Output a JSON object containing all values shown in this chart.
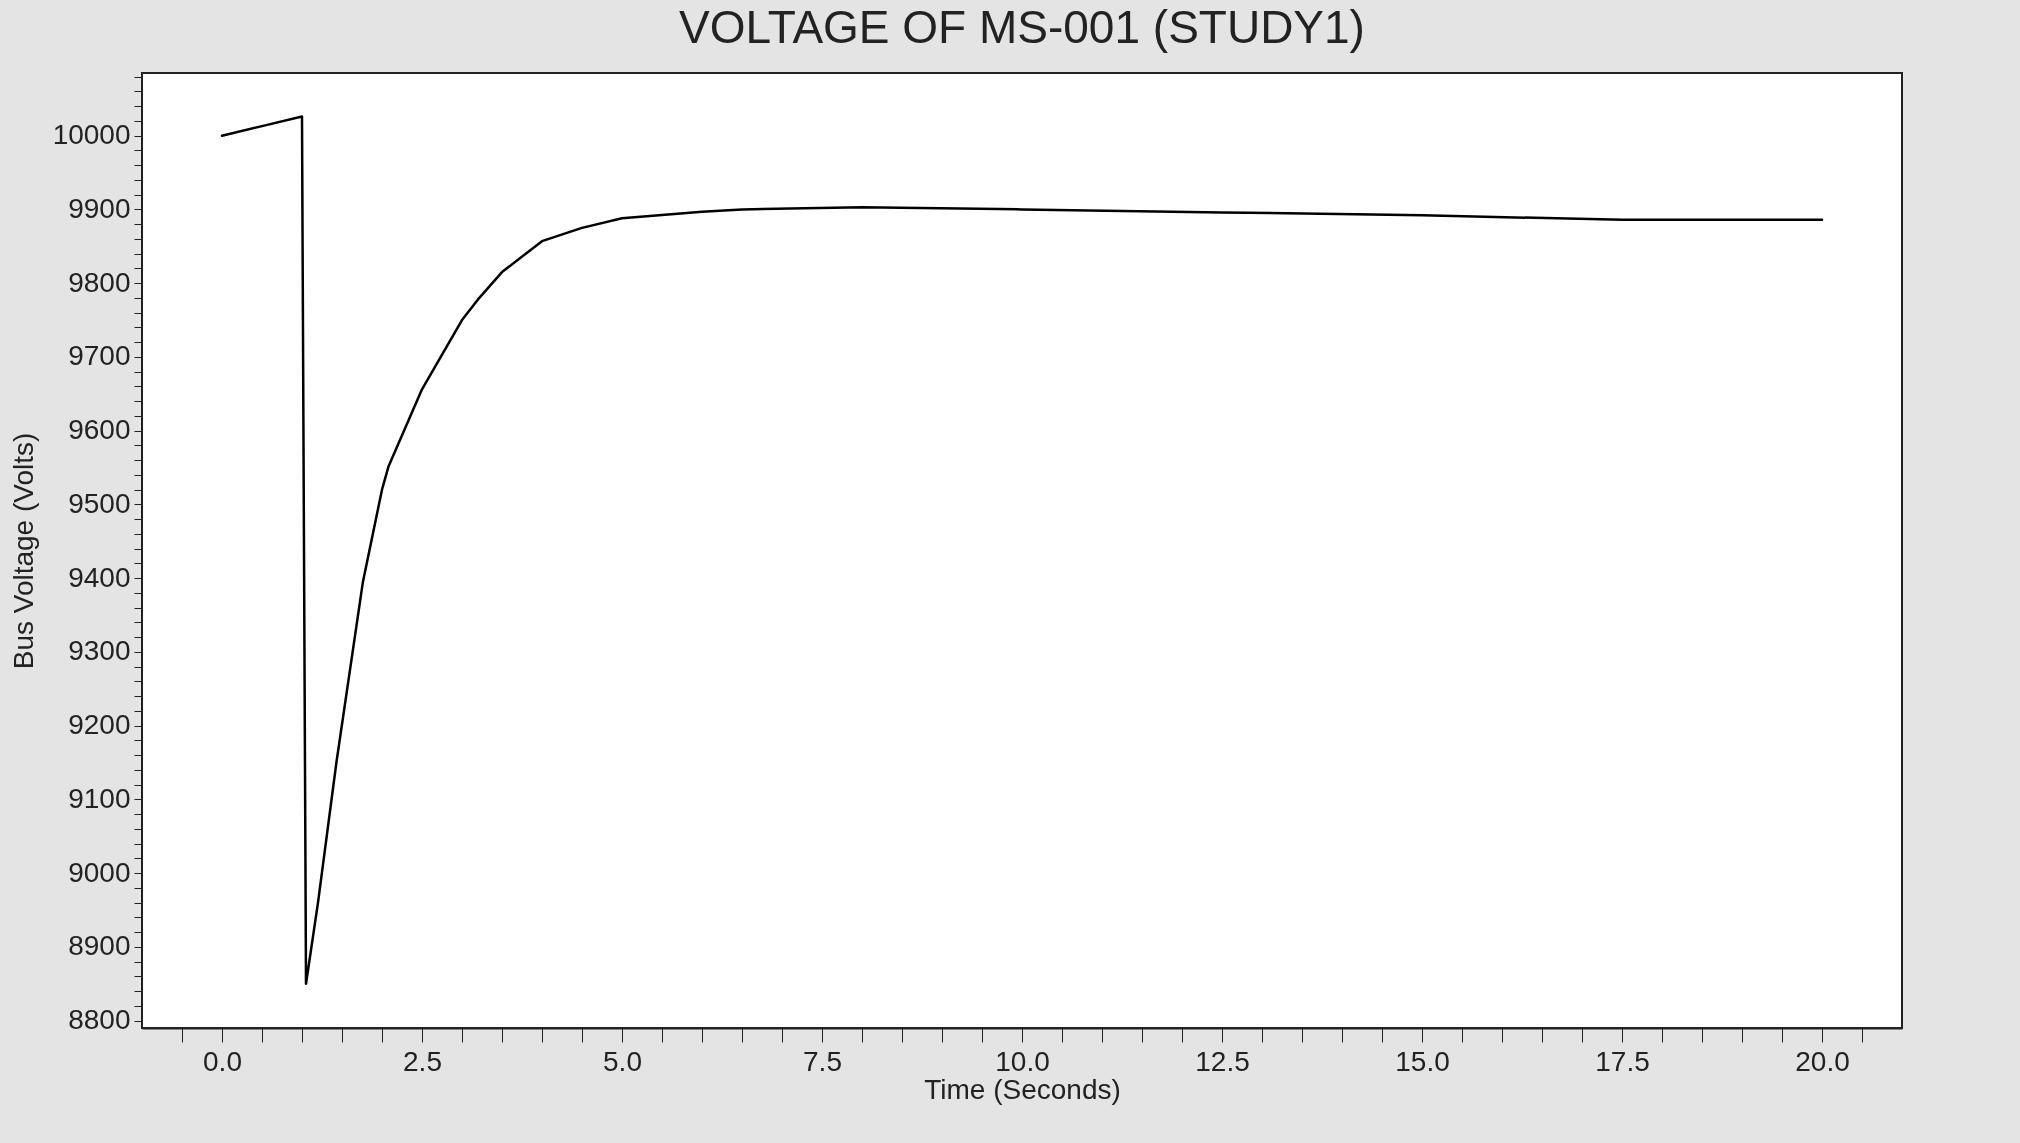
{
  "chart_data": {
    "type": "line",
    "title": "VOLTAGE OF MS-001 (STUDY1)",
    "xlabel": "Time (Seconds)",
    "ylabel": "Bus Voltage (Volts)",
    "series": [
      {
        "color": "#000000",
        "x": [
          0,
          0.5,
          1.0,
          1.05,
          1.2,
          1.43,
          1.76,
          2.0,
          2.08,
          2.5,
          3.0,
          3.2,
          3.5,
          4.0,
          4.5,
          5.0,
          6.0,
          6.5,
          8.0,
          10.0,
          12.5,
          15.0,
          17.5,
          20.0
        ],
        "values": [
          10000,
          10013,
          10026,
          8850,
          8960,
          9150,
          9394,
          9520,
          9551,
          9656,
          9750,
          9778,
          9815,
          9857,
          9875,
          9888,
          9897,
          9900,
          9903,
          9900,
          9896,
          9892,
          9886,
          9886
        ]
      }
    ],
    "xlim": [
      -1,
      21
    ],
    "ylim": [
      8790,
      10085
    ],
    "xticks": [
      {
        "value": -0.5,
        "label": null
      },
      {
        "value": 0,
        "label": "0.0"
      },
      {
        "value": 0.5,
        "label": null
      },
      {
        "value": 1,
        "label": null
      },
      {
        "value": 1.5,
        "label": null
      },
      {
        "value": 2,
        "label": null
      },
      {
        "value": 2.5,
        "label": "2.5"
      },
      {
        "value": 3,
        "label": null
      },
      {
        "value": 3.5,
        "label": null
      },
      {
        "value": 4,
        "label": null
      },
      {
        "value": 4.5,
        "label": null
      },
      {
        "value": 5,
        "label": "5.0"
      },
      {
        "value": 5.5,
        "label": null
      },
      {
        "value": 6,
        "label": null
      },
      {
        "value": 6.5,
        "label": null
      },
      {
        "value": 7,
        "label": null
      },
      {
        "value": 7.5,
        "label": "7.5"
      },
      {
        "value": 8,
        "label": null
      },
      {
        "value": 8.5,
        "label": null
      },
      {
        "value": 9,
        "label": null
      },
      {
        "value": 9.5,
        "label": null
      },
      {
        "value": 10,
        "label": "10.0"
      },
      {
        "value": 10.5,
        "label": null
      },
      {
        "value": 11,
        "label": null
      },
      {
        "value": 11.5,
        "label": null
      },
      {
        "value": 12,
        "label": null
      },
      {
        "value": 12.5,
        "label": "12.5"
      },
      {
        "value": 13,
        "label": null
      },
      {
        "value": 13.5,
        "label": null
      },
      {
        "value": 14,
        "label": null
      },
      {
        "value": 14.5,
        "label": null
      },
      {
        "value": 15,
        "label": "15.0"
      },
      {
        "value": 15.5,
        "label": null
      },
      {
        "value": 16,
        "label": null
      },
      {
        "value": 16.5,
        "label": null
      },
      {
        "value": 17,
        "label": null
      },
      {
        "value": 17.5,
        "label": "17.5"
      },
      {
        "value": 18,
        "label": null
      },
      {
        "value": 18.5,
        "label": null
      },
      {
        "value": 19,
        "label": null
      },
      {
        "value": 19.5,
        "label": null
      },
      {
        "value": 20,
        "label": "20.0"
      },
      {
        "value": 20.5,
        "label": null
      }
    ],
    "yticks": [
      8800,
      {
        "value": 8820,
        "label": null
      },
      {
        "value": 8840,
        "label": null
      },
      {
        "value": 8860,
        "label": null
      },
      {
        "value": 8880,
        "label": null
      },
      8900,
      {
        "value": 8920,
        "label": null
      },
      {
        "value": 8940,
        "label": null
      },
      {
        "value": 8960,
        "label": null
      },
      {
        "value": 8980,
        "label": null
      },
      9000,
      {
        "value": 9020,
        "label": null
      },
      {
        "value": 9040,
        "label": null
      },
      {
        "value": 9060,
        "label": null
      },
      {
        "value": 9080,
        "label": null
      },
      9100,
      {
        "value": 9120,
        "label": null
      },
      {
        "value": 9140,
        "label": null
      },
      {
        "value": 9160,
        "label": null
      },
      {
        "value": 9180,
        "label": null
      },
      9200,
      {
        "value": 9220,
        "label": null
      },
      {
        "value": 9240,
        "label": null
      },
      {
        "value": 9260,
        "label": null
      },
      {
        "value": 9280,
        "label": null
      },
      9300,
      {
        "value": 9320,
        "label": null
      },
      {
        "value": 9340,
        "label": null
      },
      {
        "value": 9360,
        "label": null
      },
      {
        "value": 9380,
        "label": null
      },
      9400,
      {
        "value": 9420,
        "label": null
      },
      {
        "value": 9440,
        "label": null
      },
      {
        "value": 9460,
        "label": null
      },
      {
        "value": 9480,
        "label": null
      },
      9500,
      {
        "value": 9520,
        "label": null
      },
      {
        "value": 9540,
        "label": null
      },
      {
        "value": 9560,
        "label": null
      },
      {
        "value": 9580,
        "label": null
      },
      9600,
      {
        "value": 9620,
        "label": null
      },
      {
        "value": 9640,
        "label": null
      },
      {
        "value": 9660,
        "label": null
      },
      {
        "value": 9680,
        "label": null
      },
      9700,
      {
        "value": 9720,
        "label": null
      },
      {
        "value": 9740,
        "label": null
      },
      {
        "value": 9760,
        "label": null
      },
      {
        "value": 9780,
        "label": null
      },
      9800,
      {
        "value": 9820,
        "label": null
      },
      {
        "value": 9840,
        "label": null
      },
      {
        "value": 9860,
        "label": null
      },
      {
        "value": 9880,
        "label": null
      },
      9900,
      {
        "value": 9920,
        "label": null
      },
      {
        "value": 9940,
        "label": null
      },
      {
        "value": 9960,
        "label": null
      },
      {
        "value": 9980,
        "label": null
      },
      10000,
      {
        "value": 10020,
        "label": null
      },
      {
        "value": 10040,
        "label": null
      },
      {
        "value": 10060,
        "label": null
      },
      {
        "value": 10080,
        "label": null
      }
    ],
    "grid": false,
    "line_style": "solid"
  }
}
